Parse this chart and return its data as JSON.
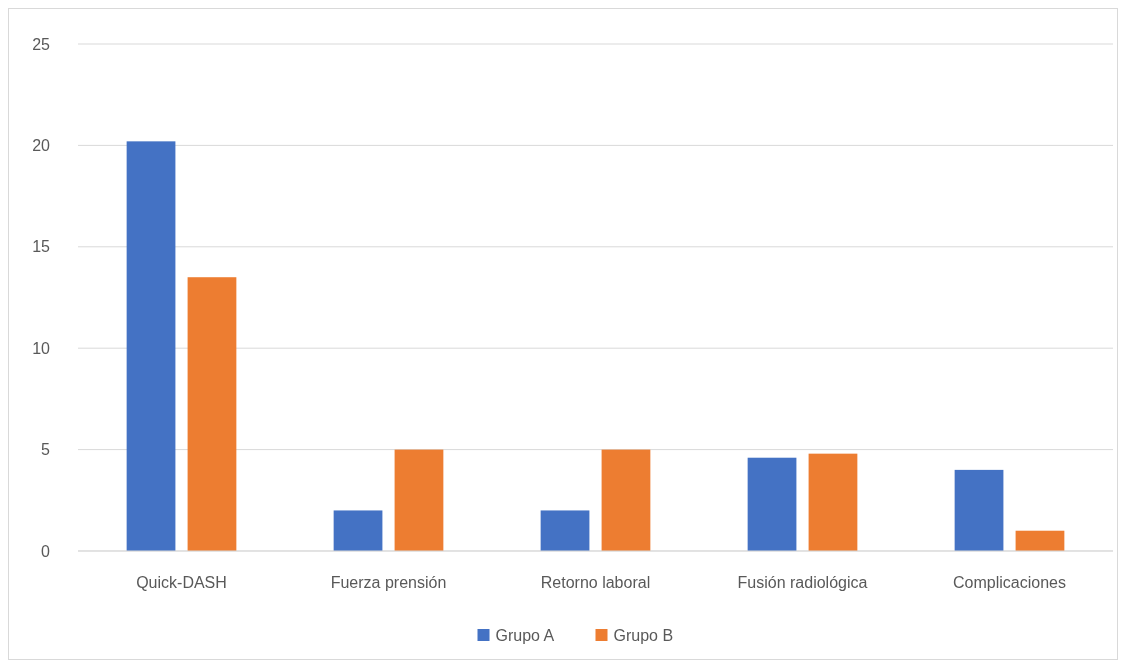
{
  "chart_data": {
    "type": "bar",
    "categories": [
      "Quick-DASH",
      "Fuerza prensión",
      "Retorno laboral",
      "Fusión radiológica",
      "Complicaciones"
    ],
    "series": [
      {
        "name": "Grupo A",
        "color": "#4472c4",
        "values": [
          20.2,
          2,
          2,
          4.6,
          4
        ]
      },
      {
        "name": "Grupo B",
        "color": "#ed7d31",
        "values": [
          13.5,
          5,
          5,
          4.8,
          1
        ]
      }
    ],
    "ylim": [
      0,
      25
    ],
    "yticks": [
      0,
      5,
      10,
      15,
      20,
      25
    ],
    "grid": "y",
    "legend": "bottom"
  }
}
